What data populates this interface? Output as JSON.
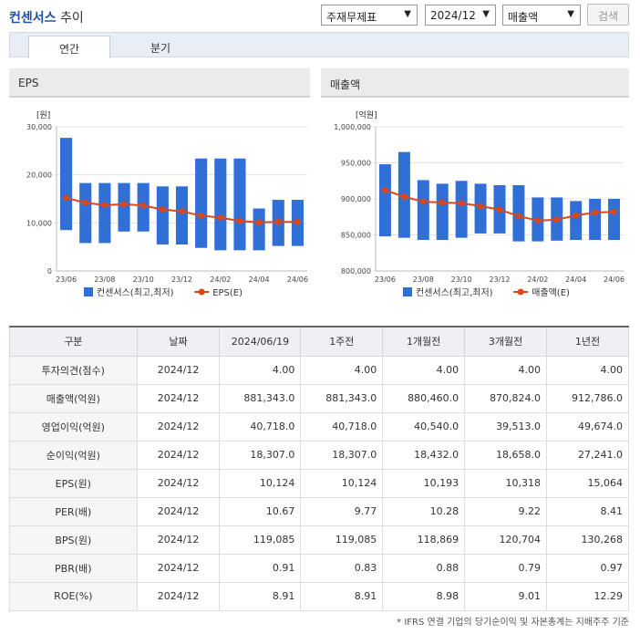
{
  "header": {
    "title_bold": "컨센서스",
    "title_rest": "추이",
    "select_statement": "주재무제표",
    "select_period": "2024/12",
    "select_metric": "매출액",
    "search_label": "검색"
  },
  "tabs": [
    "연간",
    "분기"
  ],
  "panels": {
    "left_title": "EPS",
    "right_title": "매출액"
  },
  "chart_data": [
    {
      "type": "bar",
      "title": "EPS",
      "ylabel": "[원]",
      "ylim": [
        0,
        30000
      ],
      "yticks": [
        "30,000",
        "20,000",
        "10,000",
        "0"
      ],
      "x": [
        "23/06",
        "23/07",
        "23/08",
        "23/09",
        "23/10",
        "23/11",
        "23/12",
        "24/01",
        "24/02",
        "24/03",
        "24/04",
        "24/05",
        "24/06"
      ],
      "xtick_labels": [
        "23/06",
        "23/08",
        "23/10",
        "23/12",
        "24/02",
        "24/04",
        "24/06"
      ],
      "series": [
        {
          "name": "컨센서스(최고,최저)",
          "kind": "range",
          "color": "#2f6fd6",
          "high": [
            27700,
            18300,
            18300,
            18300,
            18300,
            17600,
            17600,
            23400,
            23400,
            23400,
            13000,
            14800,
            14800
          ],
          "low": [
            8500,
            5800,
            5800,
            8200,
            8200,
            5500,
            5500,
            4800,
            4300,
            4300,
            4300,
            5200,
            5200
          ]
        },
        {
          "name": "EPS(E)",
          "kind": "line",
          "color": "#d9481c",
          "values": [
            15200,
            14200,
            13700,
            13900,
            13600,
            12800,
            12400,
            11500,
            11100,
            10400,
            10100,
            10200,
            10200
          ]
        }
      ]
    },
    {
      "type": "bar",
      "title": "매출액",
      "ylabel": "[억원]",
      "ylim": [
        800000,
        1000000
      ],
      "yticks": [
        "1,000,000",
        "950,000",
        "900,000",
        "850,000",
        "800,000"
      ],
      "x": [
        "23/06",
        "23/07",
        "23/08",
        "23/09",
        "23/10",
        "23/11",
        "23/12",
        "24/01",
        "24/02",
        "24/03",
        "24/04",
        "24/05",
        "24/06"
      ],
      "xtick_labels": [
        "23/06",
        "23/08",
        "23/10",
        "23/12",
        "24/02",
        "24/04",
        "24/06"
      ],
      "series": [
        {
          "name": "컨센서스(최고,최저)",
          "kind": "range",
          "color": "#2f6fd6",
          "high": [
            948000,
            965000,
            926000,
            921000,
            925000,
            921000,
            919000,
            919000,
            902000,
            902000,
            897000,
            900000,
            900000
          ],
          "low": [
            848000,
            846000,
            843000,
            843000,
            846000,
            852000,
            852000,
            841000,
            841000,
            842000,
            843000,
            843000,
            843000
          ]
        },
        {
          "name": "매출액(E)",
          "kind": "line",
          "color": "#d9481c",
          "values": [
            912000,
            903000,
            896000,
            895000,
            894000,
            890000,
            885000,
            876000,
            870000,
            871000,
            877000,
            881000,
            882000
          ]
        }
      ]
    }
  ],
  "table": {
    "headers": [
      "구분",
      "날짜",
      "2024/06/19",
      "1주전",
      "1개월전",
      "3개월전",
      "1년전"
    ],
    "rows": [
      [
        "투자의견(점수)",
        "2024/12",
        "4.00",
        "4.00",
        "4.00",
        "4.00",
        "4.00"
      ],
      [
        "매출액(억원)",
        "2024/12",
        "881,343.0",
        "881,343.0",
        "880,460.0",
        "870,824.0",
        "912,786.0"
      ],
      [
        "영업이익(억원)",
        "2024/12",
        "40,718.0",
        "40,718.0",
        "40,540.0",
        "39,513.0",
        "49,674.0"
      ],
      [
        "순이익(억원)",
        "2024/12",
        "18,307.0",
        "18,307.0",
        "18,432.0",
        "18,658.0",
        "27,241.0"
      ],
      [
        "EPS(원)",
        "2024/12",
        "10,124",
        "10,124",
        "10,193",
        "10,318",
        "15,064"
      ],
      [
        "PER(배)",
        "2024/12",
        "10.67",
        "9.77",
        "10.28",
        "9.22",
        "8.41"
      ],
      [
        "BPS(원)",
        "2024/12",
        "119,085",
        "119,085",
        "118,869",
        "120,704",
        "130,268"
      ],
      [
        "PBR(배)",
        "2024/12",
        "0.91",
        "0.83",
        "0.88",
        "0.79",
        "0.97"
      ],
      [
        "ROE(%)",
        "2024/12",
        "8.91",
        "8.91",
        "8.98",
        "9.01",
        "12.29"
      ]
    ]
  },
  "footnote": "* IFRS 연결 기업의 당기순이익 및 자본총계는 지배주주 기준"
}
